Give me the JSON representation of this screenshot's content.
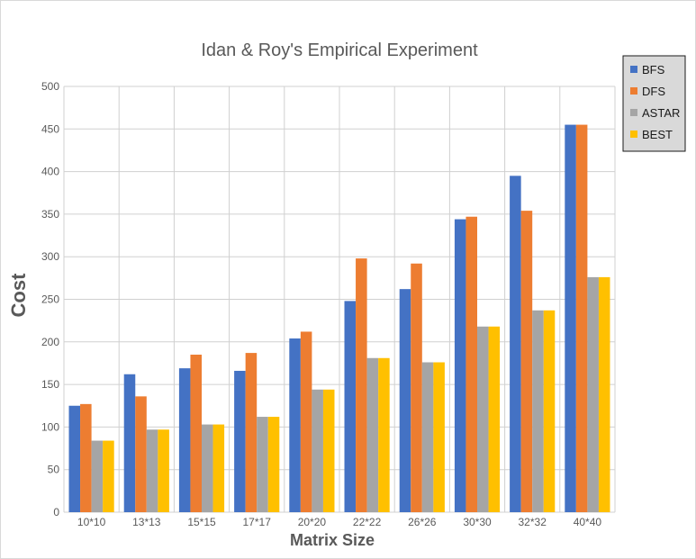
{
  "chart_data": {
    "type": "bar",
    "title": "Idan & Roy's Empirical Experiment",
    "xlabel": "Matrix Size",
    "ylabel": "Cost",
    "categories": [
      "10*10",
      "13*13",
      "15*15",
      "17*17",
      "20*20",
      "22*22",
      "26*26",
      "30*30",
      "32*32",
      "40*40"
    ],
    "ylim": [
      0,
      500
    ],
    "yticks": [
      0,
      50,
      100,
      150,
      200,
      250,
      300,
      350,
      400,
      450,
      500
    ],
    "grid": true,
    "legend_position": "right",
    "series": [
      {
        "name": "BFS",
        "color": "#4472c4",
        "values": [
          125,
          162,
          169,
          166,
          204,
          248,
          262,
          344,
          395,
          455
        ]
      },
      {
        "name": "DFS",
        "color": "#ed7d31",
        "values": [
          127,
          136,
          185,
          187,
          212,
          298,
          292,
          347,
          354,
          455
        ]
      },
      {
        "name": "ASTAR",
        "color": "#a5a5a5",
        "values": [
          84,
          97,
          103,
          112,
          144,
          181,
          176,
          218,
          237,
          276
        ]
      },
      {
        "name": "BEST",
        "color": "#ffc000",
        "values": [
          84,
          97,
          103,
          112,
          144,
          181,
          176,
          218,
          237,
          276
        ]
      }
    ]
  }
}
